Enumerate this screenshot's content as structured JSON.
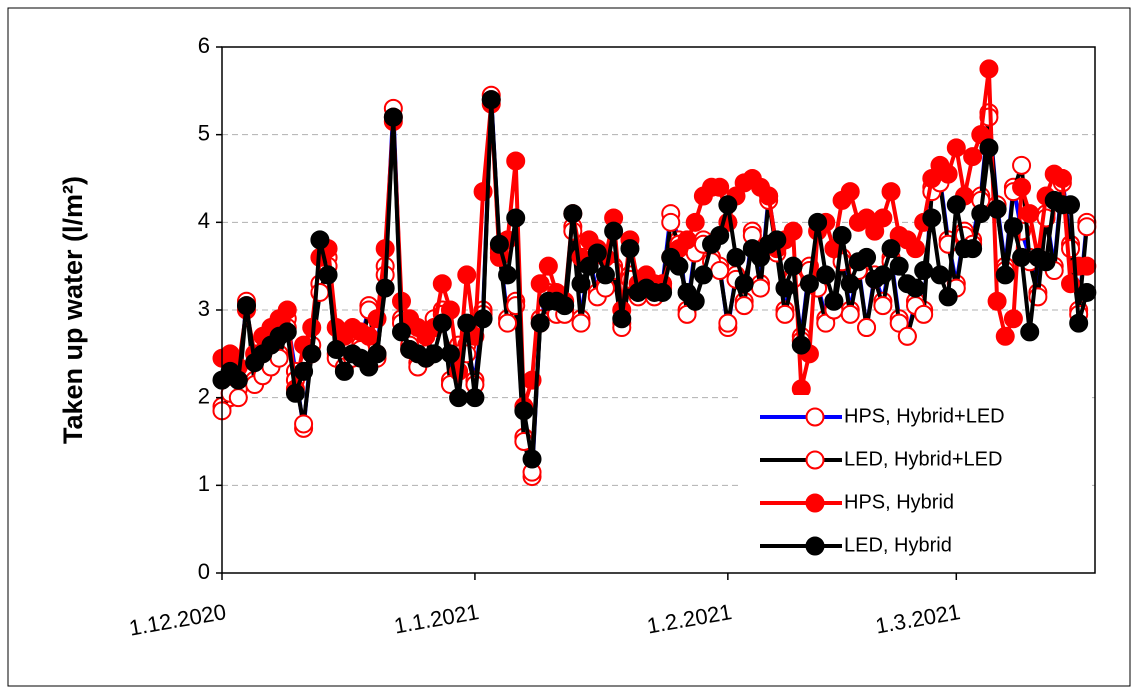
{
  "chart_data": {
    "type": "line",
    "y_label": "Taken up water (l/m²)",
    "x": [
      "1.12.2020",
      "2.12.2020",
      "3.12.2020",
      "4.12.2020",
      "5.12.2020",
      "6.12.2020",
      "7.12.2020",
      "8.12.2020",
      "9.12.2020",
      "10.12.2020",
      "11.12.2020",
      "12.12.2020",
      "13.12.2020",
      "14.12.2020",
      "15.12.2020",
      "16.12.2020",
      "17.12.2020",
      "18.12.2020",
      "19.12.2020",
      "20.12.2020",
      "21.12.2020",
      "22.12.2020",
      "23.12.2020",
      "24.12.2020",
      "25.12.2020",
      "26.12.2020",
      "27.12.2020",
      "28.12.2020",
      "29.12.2020",
      "30.12.2020",
      "31.12.2020",
      "1.1.2021",
      "2.1.2021",
      "3.1.2021",
      "4.1.2021",
      "5.1.2021",
      "6.1.2021",
      "7.1.2021",
      "8.1.2021",
      "9.1.2021",
      "10.1.2021",
      "11.1.2021",
      "12.1.2021",
      "13.1.2021",
      "14.1.2021",
      "15.1.2021",
      "16.1.2021",
      "17.1.2021",
      "18.1.2021",
      "19.1.2021",
      "20.1.2021",
      "21.1.2021",
      "22.1.2021",
      "23.1.2021",
      "24.1.2021",
      "25.1.2021",
      "26.1.2021",
      "27.1.2021",
      "28.1.2021",
      "29.1.2021",
      "30.1.2021",
      "31.1.2021",
      "1.2.2021",
      "2.2.2021",
      "3.2.2021",
      "4.2.2021",
      "5.2.2021",
      "6.2.2021",
      "7.2.2021",
      "8.2.2021",
      "9.2.2021",
      "10.2.2021",
      "11.2.2021",
      "12.2.2021",
      "13.2.2021",
      "14.2.2021",
      "15.2.2021",
      "16.2.2021",
      "17.2.2021",
      "18.2.2021",
      "19.2.2021",
      "20.2.2021",
      "21.2.2021",
      "22.2.2021",
      "23.2.2021",
      "24.2.2021",
      "25.2.2021",
      "26.2.2021",
      "27.2.2021",
      "28.2.2021",
      "1.3.2021",
      "2.3.2021",
      "3.3.2021",
      "4.3.2021",
      "5.3.2021",
      "6.3.2021",
      "7.3.2021",
      "8.3.2021",
      "9.3.2021",
      "10.3.2021",
      "11.3.2021",
      "12.3.2021",
      "13.3.2021",
      "14.3.2021",
      "15.3.2021",
      "16.3.2021",
      "17.3.2021"
    ],
    "xlim": [
      "1.12.2020",
      "18.3.2021"
    ],
    "xticks": [
      "1.12.2020",
      "1.1.2021",
      "1.2.2021",
      "1.3.2021"
    ],
    "ylim": [
      0,
      6
    ],
    "yticks": [
      0,
      1,
      2,
      3,
      4,
      5,
      6
    ],
    "grid": true,
    "series": [
      {
        "name": "HPS, Hybrid+LED",
        "color": "#0000ff",
        "marker_color": "#ff0000",
        "marker_filled": false,
        "values": [
          1.9,
          2.0,
          2.1,
          3.1,
          2.2,
          2.3,
          2.4,
          2.5,
          2.9,
          2.3,
          1.65,
          2.6,
          3.3,
          3.6,
          2.5,
          2.4,
          2.5,
          2.6,
          3.05,
          2.5,
          3.5,
          5.3,
          2.9,
          2.6,
          2.4,
          2.5,
          2.9,
          3.0,
          2.2,
          2.6,
          2.6,
          2.2,
          3.0,
          5.45,
          3.7,
          2.9,
          3.1,
          1.55,
          1.1,
          2.9,
          3.2,
          3.0,
          3.0,
          3.95,
          2.9,
          3.6,
          3.2,
          3.3,
          3.5,
          2.85,
          3.4,
          3.2,
          3.3,
          3.2,
          3.3,
          4.1,
          3.8,
          3.0,
          3.7,
          3.8,
          3.6,
          3.5,
          2.8,
          3.4,
          3.1,
          3.9,
          3.3,
          4.3,
          3.7,
          3.0,
          3.4,
          2.7,
          3.5,
          3.3,
          2.9,
          3.05,
          3.6,
          3.0,
          3.5,
          2.8,
          3.4,
          3.1,
          3.6,
          2.9,
          2.7,
          3.1,
          3.0,
          4.4,
          4.5,
          3.8,
          3.3,
          3.9,
          3.8,
          4.3,
          5.25,
          4.2,
          3.5,
          4.4,
          3.9,
          3.6,
          3.2,
          4.1,
          3.5,
          4.5,
          3.75,
          3.0,
          4.0
        ]
      },
      {
        "name": "LED, Hybrid+LED",
        "color": "#000000",
        "marker_color": "#ff0000",
        "marker_filled": false,
        "values": [
          1.85,
          2.05,
          2.0,
          3.05,
          2.15,
          2.25,
          2.35,
          2.45,
          2.8,
          2.2,
          1.7,
          2.5,
          3.2,
          3.5,
          2.45,
          2.35,
          2.45,
          2.55,
          3.0,
          2.45,
          3.4,
          5.2,
          2.85,
          2.55,
          2.35,
          2.45,
          2.8,
          2.95,
          2.15,
          2.5,
          2.5,
          2.15,
          2.95,
          5.4,
          3.65,
          2.85,
          3.05,
          1.5,
          1.15,
          2.85,
          3.15,
          2.95,
          2.95,
          3.9,
          2.85,
          3.55,
          3.15,
          3.25,
          3.45,
          2.8,
          3.35,
          3.15,
          3.25,
          3.15,
          3.25,
          4.0,
          3.75,
          2.95,
          3.65,
          3.75,
          3.55,
          3.45,
          2.85,
          3.35,
          3.05,
          3.85,
          3.25,
          4.25,
          3.65,
          2.95,
          3.35,
          2.65,
          3.45,
          3.25,
          2.85,
          3.0,
          3.55,
          2.95,
          3.45,
          2.8,
          3.35,
          3.05,
          3.55,
          2.85,
          2.7,
          3.05,
          2.95,
          4.35,
          4.45,
          3.75,
          3.25,
          3.85,
          3.75,
          4.25,
          5.2,
          4.15,
          3.45,
          4.35,
          4.65,
          3.55,
          3.15,
          4.05,
          3.45,
          4.45,
          3.7,
          2.95,
          3.95
        ]
      },
      {
        "name": "HPS, Hybrid",
        "color": "#ff0000",
        "marker_color": "#ff0000",
        "marker_filled": true,
        "values": [
          2.45,
          2.5,
          2.35,
          3.0,
          2.5,
          2.7,
          2.8,
          2.9,
          3.0,
          2.1,
          2.6,
          2.8,
          3.6,
          3.7,
          2.8,
          2.7,
          2.8,
          2.75,
          2.7,
          2.9,
          3.7,
          5.15,
          3.1,
          2.9,
          2.8,
          2.7,
          2.8,
          3.3,
          3.0,
          2.3,
          3.4,
          2.7,
          4.35,
          5.35,
          3.6,
          3.8,
          4.7,
          1.9,
          2.2,
          3.3,
          3.5,
          3.2,
          3.1,
          4.1,
          3.6,
          3.8,
          3.7,
          3.6,
          4.05,
          3.0,
          3.8,
          3.3,
          3.4,
          3.3,
          3.3,
          3.6,
          3.7,
          3.8,
          4.0,
          4.3,
          4.4,
          4.4,
          4.0,
          4.3,
          4.45,
          4.5,
          4.4,
          4.3,
          3.7,
          3.8,
          3.9,
          2.1,
          2.5,
          3.9,
          4.0,
          3.7,
          4.25,
          4.35,
          4.0,
          4.05,
          3.9,
          4.05,
          4.35,
          3.85,
          3.8,
          3.7,
          4.0,
          4.5,
          4.65,
          4.55,
          4.85,
          4.3,
          4.75,
          5.0,
          5.75,
          3.1,
          2.7,
          2.9,
          4.4,
          4.1,
          3.6,
          4.3,
          4.55,
          4.5,
          3.3,
          3.5,
          3.5
        ]
      },
      {
        "name": "LED, Hybrid",
        "color": "#000000",
        "marker_color": "#000000",
        "marker_filled": true,
        "values": [
          2.2,
          2.3,
          2.2,
          3.05,
          2.4,
          2.5,
          2.6,
          2.7,
          2.75,
          2.05,
          2.3,
          2.5,
          3.8,
          3.4,
          2.55,
          2.3,
          2.5,
          2.45,
          2.35,
          2.5,
          3.25,
          5.2,
          2.75,
          2.55,
          2.5,
          2.45,
          2.5,
          2.85,
          2.5,
          2.0,
          2.85,
          2.0,
          2.9,
          5.4,
          3.75,
          3.4,
          4.05,
          1.85,
          1.3,
          2.85,
          3.1,
          3.1,
          3.05,
          4.1,
          3.3,
          3.5,
          3.65,
          3.4,
          3.9,
          2.9,
          3.7,
          3.2,
          3.25,
          3.2,
          3.2,
          3.6,
          3.5,
          3.2,
          3.1,
          3.4,
          3.75,
          3.85,
          4.2,
          3.6,
          3.3,
          3.7,
          3.6,
          3.75,
          3.8,
          3.25,
          3.5,
          2.6,
          3.3,
          4.0,
          3.4,
          3.1,
          3.85,
          3.3,
          3.55,
          3.6,
          3.35,
          3.4,
          3.7,
          3.5,
          3.3,
          3.25,
          3.45,
          4.05,
          3.4,
          3.15,
          4.2,
          3.7,
          3.7,
          4.1,
          4.85,
          4.15,
          3.4,
          3.95,
          3.6,
          2.75,
          3.6,
          3.55,
          4.25,
          4.2,
          4.2,
          2.85,
          3.2
        ]
      }
    ]
  }
}
